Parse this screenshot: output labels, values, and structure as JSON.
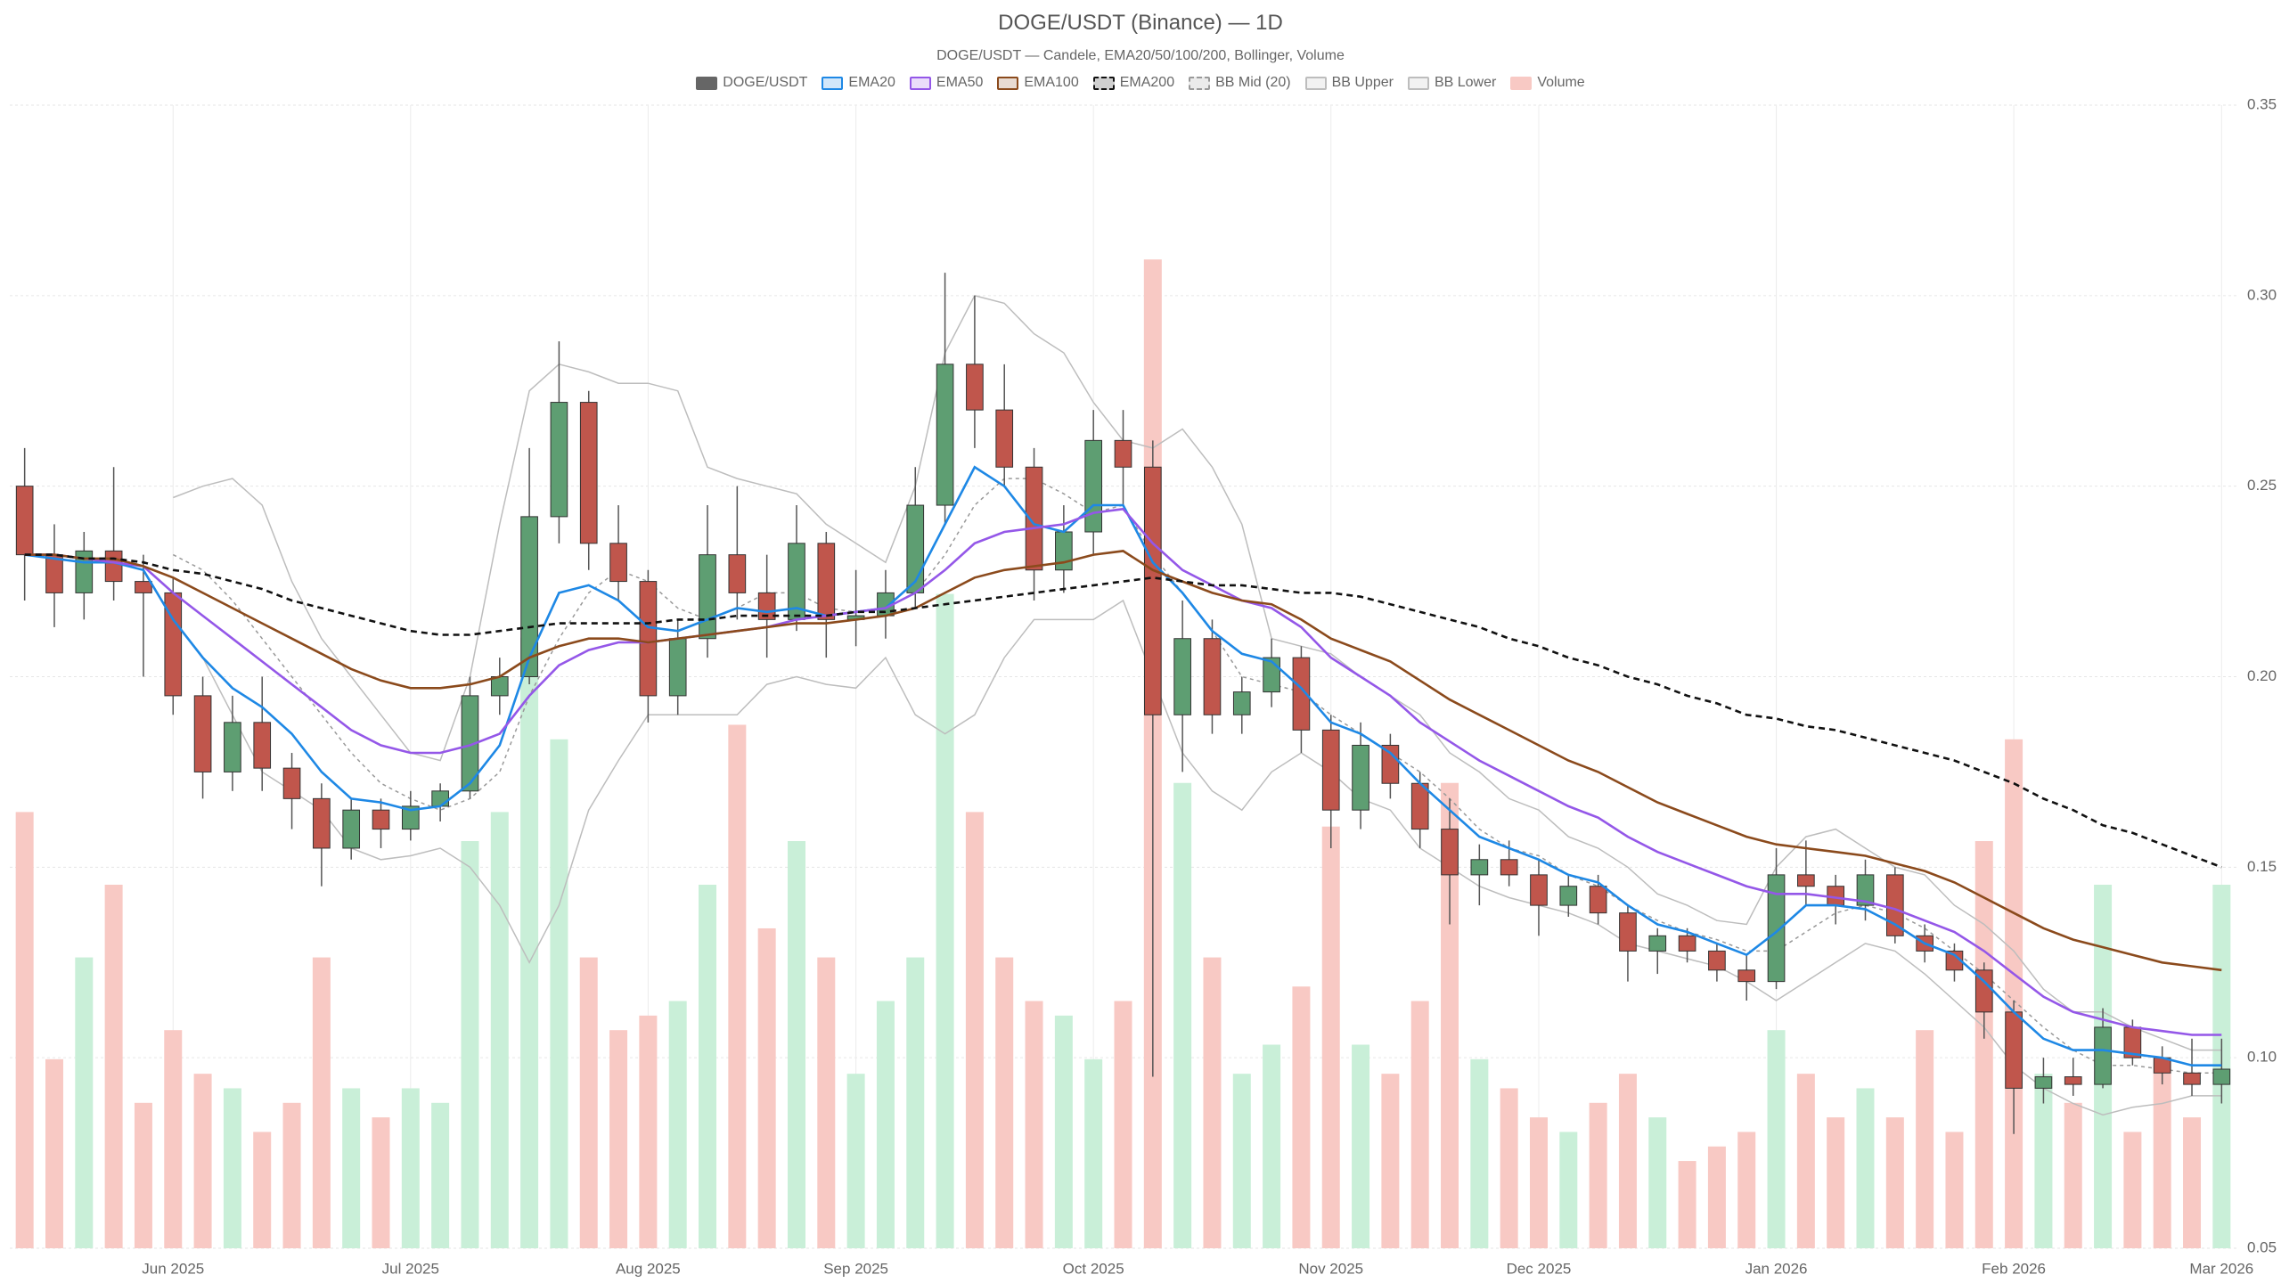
{
  "chart_data": {
    "type": "candlestick",
    "title": "DOGE/USDT (Binance) — 1D",
    "subtitle": "DOGE/USDT — Candele, EMA20/50/100/200, Bollinger, Volume",
    "name": "DOGE/USDT",
    "legend_color": "#666666",
    "up_color": "#5e9e72",
    "down_color": "#c0564c",
    "categories": [
      null,
      null,
      null,
      null,
      null,
      "Jun 2025",
      null,
      null,
      null,
      null,
      null,
      null,
      null,
      "Jul 2025",
      null,
      null,
      null,
      null,
      null,
      null,
      null,
      "Aug 2025",
      null,
      null,
      null,
      null,
      null,
      null,
      "Sep 2025",
      null,
      null,
      null,
      null,
      null,
      null,
      null,
      "Oct 2025",
      null,
      null,
      null,
      null,
      null,
      null,
      null,
      "Nov 2025",
      null,
      null,
      null,
      null,
      null,
      null,
      "Dec 2025",
      null,
      null,
      null,
      null,
      null,
      null,
      null,
      "Jan 2026",
      null,
      null,
      null,
      null,
      null,
      null,
      null,
      "Feb 2026",
      null,
      null,
      null,
      null,
      null,
      null,
      "Mar 2026"
    ],
    "open": [
      0.25,
      0.232,
      0.222,
      0.233,
      0.225,
      0.222,
      0.195,
      0.175,
      0.188,
      0.176,
      0.168,
      0.155,
      0.165,
      0.16,
      0.166,
      0.17,
      0.195,
      0.2,
      0.242,
      0.272,
      0.235,
      0.225,
      0.195,
      0.21,
      0.232,
      0.222,
      0.215,
      0.235,
      0.215,
      0.216,
      0.222,
      0.245,
      0.282,
      0.27,
      0.255,
      0.228,
      0.238,
      0.262,
      0.255,
      0.19,
      0.21,
      0.19,
      0.196,
      0.205,
      0.186,
      0.165,
      0.182,
      0.172,
      0.16,
      0.148,
      0.152,
      0.148,
      0.14,
      0.145,
      0.138,
      0.128,
      0.132,
      0.128,
      0.123,
      0.12,
      0.148,
      0.145,
      0.14,
      0.148,
      0.132,
      0.128,
      0.123,
      0.112,
      0.092,
      0.095,
      0.093,
      0.108,
      0.1,
      0.096,
      0.093
    ],
    "high": [
      0.26,
      0.24,
      0.238,
      0.255,
      0.232,
      0.226,
      0.2,
      0.195,
      0.2,
      0.18,
      0.172,
      0.168,
      0.168,
      0.17,
      0.172,
      0.2,
      0.205,
      0.26,
      0.288,
      0.275,
      0.245,
      0.228,
      0.215,
      0.245,
      0.25,
      0.232,
      0.245,
      0.238,
      0.228,
      0.228,
      0.255,
      0.306,
      0.3,
      0.282,
      0.26,
      0.245,
      0.27,
      0.27,
      0.262,
      0.22,
      0.215,
      0.2,
      0.21,
      0.208,
      0.19,
      0.188,
      0.185,
      0.175,
      0.168,
      0.156,
      0.157,
      0.152,
      0.148,
      0.148,
      0.14,
      0.134,
      0.134,
      0.13,
      0.127,
      0.155,
      0.157,
      0.148,
      0.152,
      0.15,
      0.135,
      0.13,
      0.125,
      0.115,
      0.1,
      0.1,
      0.113,
      0.11,
      0.103,
      0.105,
      0.105
    ],
    "low": [
      0.22,
      0.213,
      0.215,
      0.22,
      0.2,
      0.19,
      0.168,
      0.17,
      0.17,
      0.16,
      0.145,
      0.152,
      0.155,
      0.157,
      0.162,
      0.168,
      0.19,
      0.198,
      0.235,
      0.228,
      0.22,
      0.188,
      0.19,
      0.205,
      0.215,
      0.205,
      0.212,
      0.205,
      0.208,
      0.21,
      0.218,
      0.24,
      0.26,
      0.25,
      0.22,
      0.222,
      0.232,
      0.245,
      0.095,
      0.175,
      0.185,
      0.185,
      0.192,
      0.18,
      0.155,
      0.16,
      0.168,
      0.155,
      0.135,
      0.14,
      0.145,
      0.132,
      0.137,
      0.135,
      0.12,
      0.122,
      0.125,
      0.12,
      0.115,
      0.118,
      0.14,
      0.135,
      0.136,
      0.13,
      0.125,
      0.12,
      0.105,
      0.08,
      0.088,
      0.09,
      0.092,
      0.098,
      0.093,
      0.09,
      0.088
    ],
    "close": [
      0.232,
      0.222,
      0.233,
      0.225,
      0.222,
      0.195,
      0.175,
      0.188,
      0.176,
      0.168,
      0.155,
      0.165,
      0.16,
      0.166,
      0.17,
      0.195,
      0.2,
      0.242,
      0.272,
      0.235,
      0.225,
      0.195,
      0.21,
      0.232,
      0.222,
      0.215,
      0.235,
      0.215,
      0.216,
      0.222,
      0.245,
      0.282,
      0.27,
      0.255,
      0.228,
      0.238,
      0.262,
      0.255,
      0.19,
      0.21,
      0.19,
      0.196,
      0.205,
      0.186,
      0.165,
      0.182,
      0.172,
      0.16,
      0.148,
      0.152,
      0.148,
      0.14,
      0.145,
      0.138,
      0.128,
      0.132,
      0.128,
      0.123,
      0.12,
      0.148,
      0.145,
      0.14,
      0.148,
      0.132,
      0.128,
      0.123,
      0.112,
      0.092,
      0.095,
      0.093,
      0.108,
      0.1,
      0.096,
      0.093,
      0.097
    ],
    "lines": [
      {
        "name": "EMA20",
        "color": "#1e88e5",
        "weight": "thick",
        "dash": false,
        "values": [
          0.232,
          0.231,
          0.23,
          0.23,
          0.228,
          0.215,
          0.205,
          0.197,
          0.192,
          0.185,
          0.175,
          0.168,
          0.167,
          0.165,
          0.166,
          0.172,
          0.182,
          0.205,
          0.222,
          0.224,
          0.22,
          0.213,
          0.212,
          0.215,
          0.218,
          0.217,
          0.218,
          0.216,
          0.217,
          0.218,
          0.225,
          0.24,
          0.255,
          0.25,
          0.24,
          0.238,
          0.245,
          0.245,
          0.23,
          0.222,
          0.212,
          0.206,
          0.204,
          0.197,
          0.188,
          0.185,
          0.18,
          0.172,
          0.165,
          0.158,
          0.155,
          0.152,
          0.148,
          0.146,
          0.14,
          0.135,
          0.133,
          0.13,
          0.127,
          0.133,
          0.14,
          0.14,
          0.139,
          0.135,
          0.13,
          0.127,
          0.12,
          0.112,
          0.105,
          0.102,
          0.102,
          0.101,
          0.1,
          0.098,
          0.098
        ]
      },
      {
        "name": "EMA50",
        "color": "#9457e8",
        "weight": "thick",
        "dash": false,
        "values": [
          0.232,
          0.232,
          0.231,
          0.23,
          0.229,
          0.222,
          0.216,
          0.21,
          0.204,
          0.198,
          0.192,
          0.186,
          0.182,
          0.18,
          0.18,
          0.182,
          0.185,
          0.195,
          0.203,
          0.207,
          0.209,
          0.209,
          0.21,
          0.211,
          0.212,
          0.213,
          0.215,
          0.216,
          0.217,
          0.218,
          0.222,
          0.228,
          0.235,
          0.238,
          0.239,
          0.24,
          0.243,
          0.244,
          0.235,
          0.228,
          0.224,
          0.22,
          0.218,
          0.213,
          0.205,
          0.2,
          0.195,
          0.188,
          0.183,
          0.178,
          0.174,
          0.17,
          0.166,
          0.163,
          0.158,
          0.154,
          0.151,
          0.148,
          0.145,
          0.143,
          0.143,
          0.142,
          0.141,
          0.139,
          0.136,
          0.133,
          0.128,
          0.122,
          0.116,
          0.112,
          0.11,
          0.108,
          0.107,
          0.106,
          0.106
        ]
      },
      {
        "name": "EMA100",
        "color": "#8b4a1c",
        "weight": "thick",
        "dash": false,
        "values": [
          0.232,
          0.232,
          0.231,
          0.231,
          0.229,
          0.226,
          0.222,
          0.218,
          0.214,
          0.21,
          0.206,
          0.202,
          0.199,
          0.197,
          0.197,
          0.198,
          0.2,
          0.205,
          0.208,
          0.21,
          0.21,
          0.209,
          0.21,
          0.211,
          0.212,
          0.213,
          0.214,
          0.214,
          0.215,
          0.216,
          0.218,
          0.222,
          0.226,
          0.228,
          0.229,
          0.23,
          0.232,
          0.233,
          0.228,
          0.225,
          0.222,
          0.22,
          0.219,
          0.215,
          0.21,
          0.207,
          0.204,
          0.199,
          0.194,
          0.19,
          0.186,
          0.182,
          0.178,
          0.175,
          0.171,
          0.167,
          0.164,
          0.161,
          0.158,
          0.156,
          0.155,
          0.154,
          0.153,
          0.151,
          0.149,
          0.146,
          0.142,
          0.138,
          0.134,
          0.131,
          0.129,
          0.127,
          0.125,
          0.124,
          0.123
        ]
      },
      {
        "name": "EMA200",
        "color": "#111111",
        "weight": "thick",
        "dash": true,
        "values": [
          0.232,
          0.232,
          0.231,
          0.231,
          0.23,
          0.228,
          0.227,
          0.225,
          0.223,
          0.22,
          0.218,
          0.216,
          0.214,
          0.212,
          0.211,
          0.211,
          0.212,
          0.213,
          0.214,
          0.214,
          0.214,
          0.214,
          0.215,
          0.215,
          0.216,
          0.216,
          0.216,
          0.216,
          0.217,
          0.217,
          0.218,
          0.219,
          0.22,
          0.221,
          0.222,
          0.223,
          0.224,
          0.225,
          0.226,
          0.225,
          0.224,
          0.224,
          0.223,
          0.222,
          0.222,
          0.221,
          0.219,
          0.217,
          0.215,
          0.213,
          0.21,
          0.208,
          0.205,
          0.203,
          0.2,
          0.198,
          0.195,
          0.193,
          0.19,
          0.189,
          0.187,
          0.186,
          0.184,
          0.182,
          0.18,
          0.178,
          0.175,
          0.172,
          0.168,
          0.165,
          0.161,
          0.159,
          0.156,
          0.153,
          0.15
        ]
      },
      {
        "name": "BB Mid (20)",
        "color": "#999999",
        "weight": "thin",
        "dash": true,
        "values": [
          null,
          null,
          null,
          null,
          null,
          0.232,
          0.228,
          0.22,
          0.21,
          0.2,
          0.19,
          0.18,
          0.172,
          0.168,
          0.165,
          0.168,
          0.175,
          0.195,
          0.21,
          0.222,
          0.228,
          0.225,
          0.218,
          0.215,
          0.218,
          0.222,
          0.222,
          0.218,
          0.217,
          0.218,
          0.222,
          0.232,
          0.245,
          0.252,
          0.252,
          0.248,
          0.243,
          0.245,
          0.232,
          0.222,
          0.212,
          0.2,
          0.198,
          0.196,
          0.19,
          0.185,
          0.18,
          0.175,
          0.168,
          0.16,
          0.155,
          0.153,
          0.148,
          0.145,
          0.14,
          0.136,
          0.133,
          0.131,
          0.128,
          0.128,
          0.133,
          0.138,
          0.14,
          0.138,
          0.134,
          0.128,
          0.122,
          0.115,
          0.108,
          0.102,
          0.098,
          0.098,
          0.097,
          0.096,
          0.096
        ]
      },
      {
        "name": "BB Upper",
        "color": "#bdbdbd",
        "weight": "thin",
        "dash": false,
        "values": [
          null,
          null,
          null,
          null,
          null,
          0.247,
          0.25,
          0.252,
          0.245,
          0.225,
          0.21,
          0.2,
          0.19,
          0.18,
          0.178,
          0.2,
          0.24,
          0.275,
          0.282,
          0.28,
          0.277,
          0.277,
          0.275,
          0.255,
          0.252,
          0.25,
          0.248,
          0.24,
          0.235,
          0.23,
          0.25,
          0.285,
          0.3,
          0.298,
          0.29,
          0.285,
          0.272,
          0.262,
          0.26,
          0.265,
          0.255,
          0.24,
          0.21,
          0.208,
          0.206,
          0.2,
          0.195,
          0.19,
          0.18,
          0.175,
          0.168,
          0.165,
          0.158,
          0.155,
          0.15,
          0.143,
          0.14,
          0.136,
          0.135,
          0.15,
          0.158,
          0.16,
          0.155,
          0.15,
          0.148,
          0.14,
          0.135,
          0.128,
          0.118,
          0.112,
          0.112,
          0.108,
          0.105,
          0.102,
          0.102
        ]
      },
      {
        "name": "BB Lower",
        "color": "#bdbdbd",
        "weight": "thin",
        "dash": false,
        "values": [
          null,
          null,
          null,
          null,
          null,
          0.215,
          0.205,
          0.19,
          0.175,
          0.17,
          0.165,
          0.155,
          0.152,
          0.153,
          0.155,
          0.15,
          0.14,
          0.125,
          0.14,
          0.165,
          0.178,
          0.19,
          0.19,
          0.19,
          0.19,
          0.198,
          0.2,
          0.198,
          0.197,
          0.205,
          0.19,
          0.185,
          0.19,
          0.205,
          0.215,
          0.215,
          0.215,
          0.22,
          0.2,
          0.18,
          0.17,
          0.165,
          0.175,
          0.18,
          0.175,
          0.168,
          0.165,
          0.155,
          0.15,
          0.145,
          0.142,
          0.14,
          0.138,
          0.135,
          0.13,
          0.128,
          0.126,
          0.124,
          0.12,
          0.115,
          0.12,
          0.125,
          0.13,
          0.128,
          0.122,
          0.115,
          0.108,
          0.098,
          0.092,
          0.088,
          0.085,
          0.087,
          0.088,
          0.09,
          0.09
        ]
      }
    ],
    "volume": {
      "name": "Volume",
      "legend_color": "#f8c9c4",
      "up_color": "#c9efd8",
      "down_color": "#f8c9c4",
      "values": [
        300,
        130,
        200,
        250,
        100,
        150,
        120,
        110,
        80,
        100,
        200,
        110,
        90,
        110,
        100,
        280,
        300,
        420,
        350,
        200,
        150,
        160,
        170,
        250,
        360,
        220,
        280,
        200,
        120,
        170,
        200,
        450,
        300,
        200,
        170,
        160,
        130,
        170,
        680,
        320,
        200,
        120,
        140,
        180,
        290,
        140,
        120,
        170,
        320,
        130,
        110,
        90,
        80,
        100,
        120,
        90,
        60,
        70,
        80,
        150,
        120,
        90,
        110,
        90,
        150,
        80,
        280,
        350,
        120,
        100,
        250,
        80,
        130,
        90,
        250
      ]
    },
    "ylim": [
      0.05,
      0.35
    ],
    "yticks": [
      0.05,
      {
        "value": 0.1,
        "label": "0.10"
      },
      0.15,
      {
        "value": 0.2,
        "label": "0.20"
      },
      0.25,
      {
        "value": 0.3,
        "label": "0.30"
      },
      0.35
    ],
    "y_axis_side": "right",
    "grid": true
  }
}
